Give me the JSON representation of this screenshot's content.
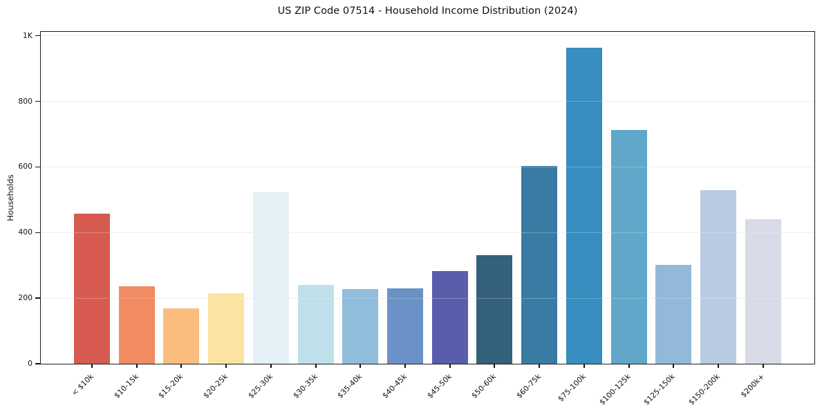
{
  "title": "US ZIP Code 07514 - Household Income Distribution (2024)",
  "chart_data": {
    "type": "bar",
    "title": "US ZIP Code 07514 - Household Income Distribution (2024)",
    "xlabel": "",
    "ylabel": "Households",
    "ylim": [
      0,
      1012
    ],
    "grid": "horizontal",
    "legend": "none",
    "background_color": "#ffffff",
    "spine_color": "#1c1c1c",
    "gridline_color": "#e7e7e7",
    "yticks": {
      "values": [
        0,
        200,
        400,
        600,
        800,
        1000
      ],
      "labels": [
        "0",
        "200",
        "400",
        "600",
        "800",
        "1K"
      ]
    },
    "categories": [
      "< $10k",
      "$10-15k",
      "$15-20k",
      "$20-25k",
      "$25-30k",
      "$30-35k",
      "$35-40k",
      "$40-45k",
      "$45-50k",
      "$50-60k",
      "$60-75k",
      "$75-100k",
      "$100-125k",
      "$125-150k",
      "$150-200k",
      "$200k+"
    ],
    "values": [
      458,
      236,
      168,
      216,
      523,
      240,
      227,
      230,
      282,
      330,
      603,
      964,
      713,
      302,
      530,
      440
    ],
    "bar_colors": [
      "#d75a50",
      "#f28a62",
      "#fbbd7d",
      "#fde3a2",
      "#e4f1f6",
      "#bee0eb",
      "#90bddc",
      "#6b92c6",
      "#5a5dac",
      "#34617b",
      "#3a7ba4",
      "#388dc1",
      "#60a7c9",
      "#93b9da",
      "#b9cbe3",
      "#d8dae7"
    ]
  }
}
